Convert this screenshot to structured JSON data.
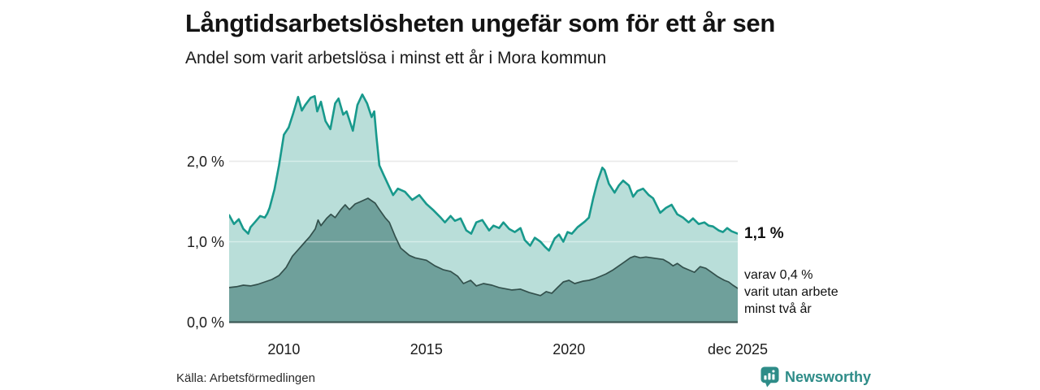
{
  "header": {
    "title": "Långtidsarbetslösheten ungefär som för ett år sen",
    "subtitle": "Andel som varit arbetslösa i minst ett år i Mora kommun"
  },
  "annotations": {
    "end_value_label": "1,1 %",
    "detail_lines": [
      "varav 0,4 %",
      "varit utan arbete",
      "minst två år"
    ]
  },
  "footer": {
    "source": "Källa: Arbetsförmedlingen",
    "brand": "Newsworthy"
  },
  "colors": {
    "line_total": "#18998c",
    "fill_total": "#b9ded9",
    "line_two_years": "#33504c",
    "fill_two_years": "#6fa09b",
    "gridline": "#d9d9d9",
    "gridline_overlay": "rgba(255,255,255,0.42)",
    "baseline": "#3e5a56",
    "brand_teal": "#2e8c88"
  },
  "chart_data": {
    "type": "area",
    "title": "Långtidsarbetslösheten ungefär som för ett år sen",
    "subtitle": "Andel som varit arbetslösa i minst ett år i Mora kommun",
    "unit": "%",
    "grid": true,
    "legend_position": "right-annotations",
    "x_domain": [
      2008.08,
      2025.92
    ],
    "ylim": [
      0,
      2.95
    ],
    "yticks": [
      {
        "value": 0,
        "label": "0,0 %"
      },
      {
        "value": 1,
        "label": "1,0 %"
      },
      {
        "value": 2,
        "label": "2,0 %"
      }
    ],
    "xticks": [
      {
        "value": 2010,
        "label": "2010"
      },
      {
        "value": 2015,
        "label": "2015"
      },
      {
        "value": 2020,
        "label": "2020"
      },
      {
        "value": 2025.92,
        "label": "dec 2025"
      }
    ],
    "series": [
      {
        "name": "Andel arbetslösa minst ett år",
        "end_value": 1.1,
        "points": [
          [
            2008.08,
            1.33
          ],
          [
            2008.25,
            1.22
          ],
          [
            2008.42,
            1.28
          ],
          [
            2008.58,
            1.16
          ],
          [
            2008.75,
            1.1
          ],
          [
            2008.83,
            1.18
          ],
          [
            2009.0,
            1.25
          ],
          [
            2009.17,
            1.32
          ],
          [
            2009.33,
            1.3
          ],
          [
            2009.42,
            1.35
          ],
          [
            2009.5,
            1.42
          ],
          [
            2009.67,
            1.65
          ],
          [
            2009.83,
            1.95
          ],
          [
            2010.0,
            2.33
          ],
          [
            2010.17,
            2.42
          ],
          [
            2010.33,
            2.6
          ],
          [
            2010.5,
            2.8
          ],
          [
            2010.63,
            2.63
          ],
          [
            2010.75,
            2.7
          ],
          [
            2010.94,
            2.79
          ],
          [
            2011.08,
            2.81
          ],
          [
            2011.17,
            2.62
          ],
          [
            2011.3,
            2.74
          ],
          [
            2011.46,
            2.5
          ],
          [
            2011.63,
            2.4
          ],
          [
            2011.8,
            2.72
          ],
          [
            2011.92,
            2.78
          ],
          [
            2012.08,
            2.58
          ],
          [
            2012.2,
            2.62
          ],
          [
            2012.42,
            2.38
          ],
          [
            2012.58,
            2.7
          ],
          [
            2012.75,
            2.83
          ],
          [
            2012.92,
            2.72
          ],
          [
            2013.08,
            2.55
          ],
          [
            2013.17,
            2.62
          ],
          [
            2013.25,
            2.3
          ],
          [
            2013.35,
            1.95
          ],
          [
            2013.5,
            1.83
          ],
          [
            2013.67,
            1.7
          ],
          [
            2013.83,
            1.58
          ],
          [
            2014.0,
            1.66
          ],
          [
            2014.25,
            1.62
          ],
          [
            2014.5,
            1.52
          ],
          [
            2014.75,
            1.58
          ],
          [
            2015.0,
            1.47
          ],
          [
            2015.25,
            1.39
          ],
          [
            2015.5,
            1.3
          ],
          [
            2015.65,
            1.24
          ],
          [
            2015.85,
            1.32
          ],
          [
            2016.0,
            1.26
          ],
          [
            2016.2,
            1.29
          ],
          [
            2016.4,
            1.14
          ],
          [
            2016.57,
            1.1
          ],
          [
            2016.75,
            1.24
          ],
          [
            2016.96,
            1.27
          ],
          [
            2017.2,
            1.14
          ],
          [
            2017.35,
            1.2
          ],
          [
            2017.55,
            1.17
          ],
          [
            2017.7,
            1.24
          ],
          [
            2017.9,
            1.16
          ],
          [
            2018.1,
            1.12
          ],
          [
            2018.3,
            1.17
          ],
          [
            2018.45,
            1.02
          ],
          [
            2018.64,
            0.95
          ],
          [
            2018.8,
            1.05
          ],
          [
            2019.0,
            1.0
          ],
          [
            2019.15,
            0.94
          ],
          [
            2019.3,
            0.89
          ],
          [
            2019.5,
            1.04
          ],
          [
            2019.65,
            1.09
          ],
          [
            2019.8,
            1.0
          ],
          [
            2019.95,
            1.12
          ],
          [
            2020.1,
            1.1
          ],
          [
            2020.3,
            1.18
          ],
          [
            2020.55,
            1.25
          ],
          [
            2020.7,
            1.3
          ],
          [
            2020.85,
            1.54
          ],
          [
            2021.0,
            1.75
          ],
          [
            2021.17,
            1.92
          ],
          [
            2021.25,
            1.89
          ],
          [
            2021.4,
            1.72
          ],
          [
            2021.6,
            1.61
          ],
          [
            2021.75,
            1.7
          ],
          [
            2021.9,
            1.76
          ],
          [
            2022.1,
            1.7
          ],
          [
            2022.25,
            1.56
          ],
          [
            2022.4,
            1.63
          ],
          [
            2022.6,
            1.66
          ],
          [
            2022.8,
            1.58
          ],
          [
            2022.95,
            1.54
          ],
          [
            2023.2,
            1.36
          ],
          [
            2023.4,
            1.42
          ],
          [
            2023.6,
            1.46
          ],
          [
            2023.8,
            1.34
          ],
          [
            2024.0,
            1.3
          ],
          [
            2024.2,
            1.24
          ],
          [
            2024.35,
            1.29
          ],
          [
            2024.55,
            1.22
          ],
          [
            2024.75,
            1.24
          ],
          [
            2024.9,
            1.2
          ],
          [
            2025.05,
            1.19
          ],
          [
            2025.25,
            1.14
          ],
          [
            2025.4,
            1.12
          ],
          [
            2025.55,
            1.17
          ],
          [
            2025.7,
            1.13
          ],
          [
            2025.92,
            1.1
          ]
        ]
      },
      {
        "name": "varav utan arbete minst två år",
        "end_value": 0.4,
        "points": [
          [
            2008.08,
            0.43
          ],
          [
            2008.33,
            0.44
          ],
          [
            2008.58,
            0.46
          ],
          [
            2008.83,
            0.45
          ],
          [
            2009.08,
            0.47
          ],
          [
            2009.33,
            0.5
          ],
          [
            2009.58,
            0.53
          ],
          [
            2009.83,
            0.58
          ],
          [
            2010.08,
            0.68
          ],
          [
            2010.3,
            0.82
          ],
          [
            2010.5,
            0.9
          ],
          [
            2010.7,
            0.98
          ],
          [
            2010.9,
            1.06
          ],
          [
            2011.1,
            1.16
          ],
          [
            2011.2,
            1.27
          ],
          [
            2011.3,
            1.2
          ],
          [
            2011.5,
            1.29
          ],
          [
            2011.65,
            1.34
          ],
          [
            2011.8,
            1.3
          ],
          [
            2012.0,
            1.4
          ],
          [
            2012.15,
            1.46
          ],
          [
            2012.3,
            1.4
          ],
          [
            2012.5,
            1.47
          ],
          [
            2012.7,
            1.5
          ],
          [
            2012.95,
            1.54
          ],
          [
            2013.2,
            1.48
          ],
          [
            2013.35,
            1.4
          ],
          [
            2013.55,
            1.3
          ],
          [
            2013.7,
            1.24
          ],
          [
            2013.9,
            1.07
          ],
          [
            2014.1,
            0.92
          ],
          [
            2014.4,
            0.83
          ],
          [
            2014.6,
            0.8
          ],
          [
            2015.0,
            0.77
          ],
          [
            2015.3,
            0.7
          ],
          [
            2015.6,
            0.65
          ],
          [
            2015.85,
            0.63
          ],
          [
            2016.1,
            0.57
          ],
          [
            2016.3,
            0.48
          ],
          [
            2016.55,
            0.52
          ],
          [
            2016.75,
            0.45
          ],
          [
            2017.0,
            0.48
          ],
          [
            2017.3,
            0.46
          ],
          [
            2017.55,
            0.43
          ],
          [
            2018.0,
            0.4
          ],
          [
            2018.3,
            0.41
          ],
          [
            2018.6,
            0.37
          ],
          [
            2019.0,
            0.33
          ],
          [
            2019.2,
            0.38
          ],
          [
            2019.4,
            0.36
          ],
          [
            2019.6,
            0.43
          ],
          [
            2019.8,
            0.5
          ],
          [
            2020.0,
            0.52
          ],
          [
            2020.2,
            0.48
          ],
          [
            2020.5,
            0.51
          ],
          [
            2020.7,
            0.52
          ],
          [
            2020.9,
            0.54
          ],
          [
            2021.1,
            0.57
          ],
          [
            2021.3,
            0.6
          ],
          [
            2021.55,
            0.65
          ],
          [
            2021.75,
            0.7
          ],
          [
            2021.95,
            0.75
          ],
          [
            2022.15,
            0.8
          ],
          [
            2022.3,
            0.82
          ],
          [
            2022.5,
            0.8
          ],
          [
            2022.7,
            0.81
          ],
          [
            2022.9,
            0.8
          ],
          [
            2023.1,
            0.79
          ],
          [
            2023.3,
            0.78
          ],
          [
            2023.5,
            0.74
          ],
          [
            2023.65,
            0.7
          ],
          [
            2023.8,
            0.73
          ],
          [
            2024.0,
            0.68
          ],
          [
            2024.2,
            0.65
          ],
          [
            2024.4,
            0.62
          ],
          [
            2024.6,
            0.69
          ],
          [
            2024.8,
            0.67
          ],
          [
            2025.0,
            0.62
          ],
          [
            2025.2,
            0.57
          ],
          [
            2025.45,
            0.52
          ],
          [
            2025.6,
            0.5
          ],
          [
            2025.75,
            0.46
          ],
          [
            2025.92,
            0.42
          ]
        ]
      }
    ]
  }
}
